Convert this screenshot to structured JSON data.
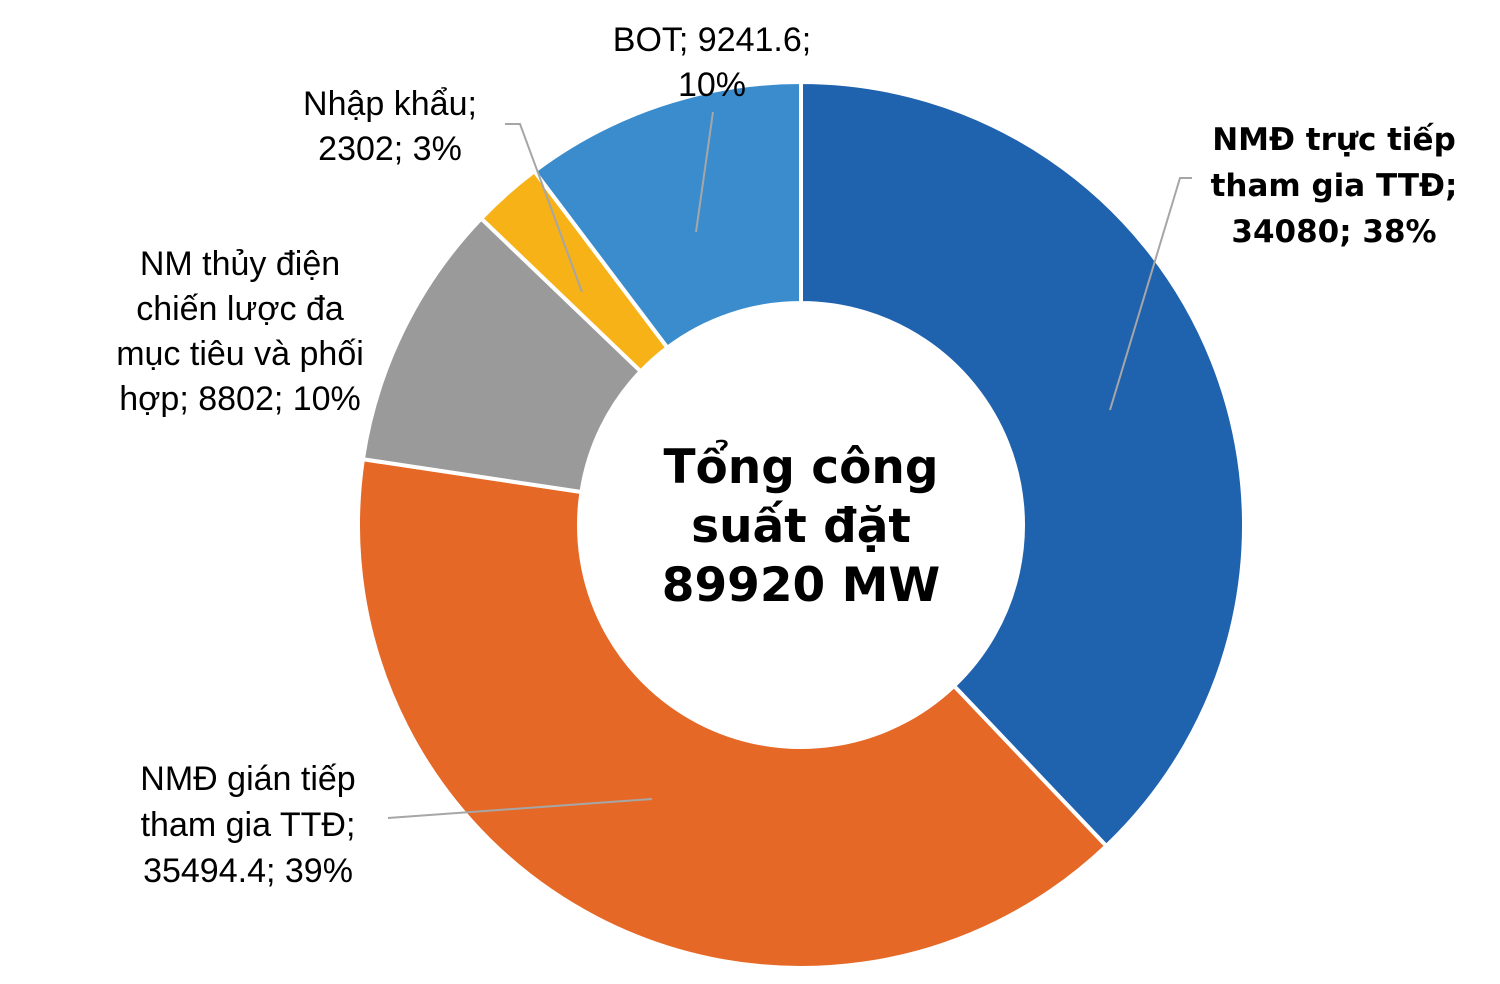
{
  "chart_data": {
    "type": "pie",
    "variant": "donut",
    "center_text": [
      "Tổng công",
      "suất đặt",
      "89920 MW"
    ],
    "slices": [
      {
        "name": "NMĐ trực tiếp tham gia TTĐ",
        "value": 34080,
        "percent": 38,
        "color": "#1f62ad",
        "label_lines": [
          "NMĐ trực tiếp",
          "tham gia TTĐ;",
          "34080; 38%"
        ],
        "highlight": true
      },
      {
        "name": "NMĐ gián tiếp tham gia TTĐ",
        "value": 35494.4,
        "percent": 39,
        "color": "#e66826",
        "label_lines": [
          "NMĐ gián tiếp",
          "tham gia TTĐ;",
          "35494.4; 39%"
        ],
        "highlight": false
      },
      {
        "name": "NM thủy điện chiến lược đa mục tiêu và phối hợp",
        "value": 8802,
        "percent": 10,
        "color": "#9a9a9a",
        "label_lines": [
          "NM thủy điện",
          "chiến lược đa",
          "mục tiêu và phối",
          "hợp; 8802; 10%"
        ],
        "highlight": false
      },
      {
        "name": "Nhập khẩu",
        "value": 2302,
        "percent": 3,
        "color": "#f7b218",
        "label_lines": [
          "Nhập khẩu;",
          "2302; 3%"
        ],
        "highlight": false
      },
      {
        "name": "BOT",
        "value": 9241.6,
        "percent": 10,
        "color": "#3a8ccc",
        "label_lines": [
          "BOT; 9241.6;",
          "10%"
        ],
        "highlight": false
      }
    ],
    "highlight_label_color": "#1f62ad",
    "label_color": "#000000",
    "leader_line_color": "#a6a6a6",
    "slice_border_color": "#ffffff"
  }
}
